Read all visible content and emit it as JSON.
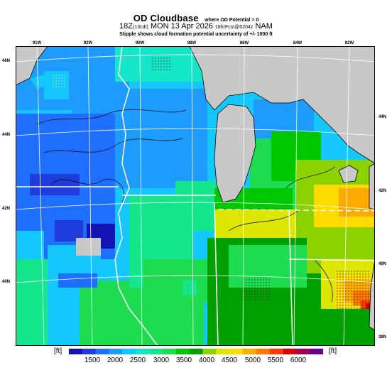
{
  "header": {
    "title": "OD Cloudbase",
    "title_note": "where OD Potential > 0",
    "valid_prefix": "18Z",
    "valid_local": "(13cdt)",
    "valid_date": "MON 13 Apr 2026",
    "forecast": "18hrFcst@0204z",
    "model": "NAM",
    "stipple_note": "Stipple shows cloud formation potential uncertainty of +/- 1000 ft"
  },
  "map": {
    "lon_labels": [
      "91W",
      "92W",
      "90W",
      "88W",
      "86W",
      "84W",
      "82W"
    ],
    "lat_labels_left": [
      "46N",
      "44N",
      "42N",
      "40N"
    ],
    "lat_labels_right": [
      "44N",
      "42N",
      "40N",
      "38N"
    ],
    "colors": {
      "land_gray": "#c8c8c8",
      "grid_line": "#ffffff",
      "coast_line": "#000000"
    }
  },
  "colorbar": {
    "unit_left": "[ft]",
    "unit_right": "[ft]",
    "labels": [
      "1500",
      "2000",
      "2500",
      "3000",
      "3500",
      "4000",
      "4500",
      "5000",
      "5500",
      "6000"
    ],
    "colors": [
      "#1414b4",
      "#1e3cdc",
      "#1e6eff",
      "#1e9bff",
      "#14c8ff",
      "#14e6c8",
      "#14e68c",
      "#1edc50",
      "#00c800",
      "#00a000",
      "#8cd200",
      "#dce600",
      "#ffdc00",
      "#ffaa00",
      "#ff7800",
      "#ff3c00",
      "#dc0000",
      "#a00050",
      "#640096"
    ]
  }
}
